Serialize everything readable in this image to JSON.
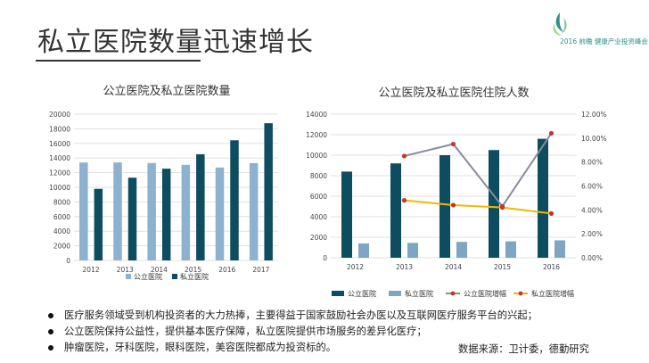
{
  "slide": {
    "title": "私立医院数量迅速增长",
    "logo_text": "2016 前瞻 健康产业投资峰会",
    "logo_sub": "健康产业投资峰会",
    "bullets": [
      "医疗服务领域受到机构投资者的大力热捧，主要得益于国家鼓励社会办医以及互联网医疗服务平台的兴起；",
      "公立医院保持公益性，提供基本医疗保障，私立医院提供市场服务的差异化医疗；",
      "肿瘤医院，牙科医院，眼科医院，美容医院都成为投资标的。"
    ],
    "source": "数据来源：卫计委，德勤研究"
  },
  "colors": {
    "public": "#0e4d5f",
    "private": "#7ea6c2",
    "public_light": "#8cb2cf",
    "public_growth": "#8a8a99",
    "private_growth": "#f2b705",
    "marker": "#c0392b",
    "grid": "#d9d9d9",
    "logo": "#2f8f8b"
  },
  "chart_data": [
    {
      "type": "bar",
      "title": "公立医院及私立医院数量",
      "categories": [
        "2012",
        "2013",
        "2014",
        "2015",
        "2016",
        "2017"
      ],
      "ylim": [
        0,
        20000
      ],
      "yticks": [
        0,
        2000,
        4000,
        6000,
        8000,
        10000,
        12000,
        14000,
        16000,
        18000,
        20000
      ],
      "grid": true,
      "legend_position": "bottom",
      "series": [
        {
          "name": "公立医院",
          "values": [
            13384,
            13396,
            13314,
            13069,
            12708,
            13300
          ]
        },
        {
          "name": "私立医院",
          "values": [
            9786,
            11313,
            12546,
            14518,
            16432,
            18759
          ]
        }
      ]
    },
    {
      "type": "bar",
      "title": "公立医院及私立医院住院人数",
      "categories": [
        "2012",
        "2013",
        "2014",
        "2015",
        "2016"
      ],
      "ylim": [
        0,
        14000
      ],
      "yticks": [
        0,
        2000,
        4000,
        6000,
        8000,
        10000,
        12000,
        14000
      ],
      "y2lim": [
        0,
        12
      ],
      "y2ticks": [
        "0.00%",
        "2.00%",
        "4.00%",
        "6.00%",
        "8.00%",
        "10.00%",
        "12.00%"
      ],
      "grid": true,
      "legend_position": "bottom",
      "series": [
        {
          "name": "公立医院",
          "values": [
            8400,
            9200,
            10000,
            10500,
            11600
          ]
        },
        {
          "name": "私立医院",
          "values": [
            1400,
            1450,
            1550,
            1600,
            1700
          ]
        }
      ],
      "line_series": [
        {
          "name": "公立医院增幅",
          "axis": "right",
          "values": [
            null,
            8.5,
            9.5,
            4.3,
            10.4
          ]
        },
        {
          "name": "私立医院增幅",
          "axis": "right",
          "values": [
            null,
            4.8,
            4.4,
            4.2,
            3.7
          ]
        }
      ]
    }
  ]
}
